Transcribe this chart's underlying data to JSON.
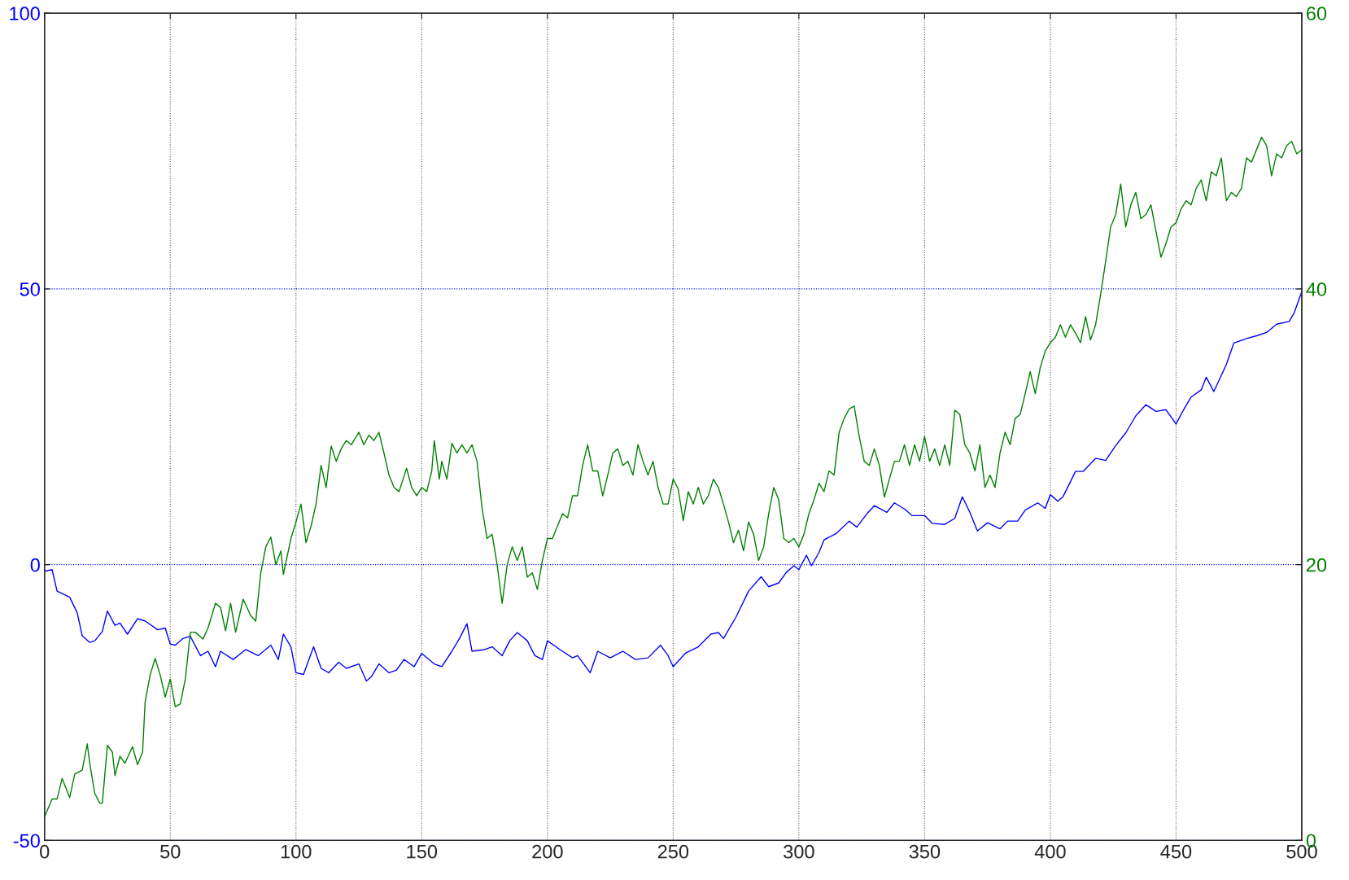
{
  "chart_data": {
    "type": "line",
    "xlim": [
      0,
      500
    ],
    "xticks": [
      0,
      50,
      100,
      150,
      200,
      250,
      300,
      350,
      400,
      450,
      500
    ],
    "ylim": [
      -50,
      100
    ],
    "yticks": [
      -50,
      0,
      50,
      100
    ],
    "y2lim": [
      0,
      60
    ],
    "y2ticks": [
      0,
      20,
      40,
      60
    ],
    "grid": true,
    "line_style": "solid",
    "marker": "none",
    "series": [
      {
        "color": "#0000ff",
        "x": [
          0,
          3,
          5,
          10,
          13,
          15,
          18,
          20,
          23,
          25,
          28,
          30,
          33,
          37,
          40,
          45,
          48,
          50,
          52,
          55,
          58,
          62,
          65,
          68,
          70,
          75,
          80,
          85,
          90,
          93,
          95,
          98,
          100,
          103,
          107,
          110,
          113,
          117,
          120,
          125,
          128,
          130,
          133,
          137,
          140,
          143,
          147,
          150,
          155,
          158,
          162,
          165,
          168,
          170,
          175,
          178,
          182,
          185,
          188,
          192,
          195,
          198,
          200,
          205,
          210,
          212,
          217,
          220,
          225,
          230,
          235,
          240,
          245,
          248,
          250,
          255,
          260,
          265,
          268,
          270,
          275,
          280,
          285,
          288,
          292,
          295,
          298,
          300,
          303,
          305,
          308,
          310,
          315,
          320,
          323,
          327,
          330,
          335,
          338,
          342,
          345,
          350,
          353,
          358,
          362,
          365,
          368,
          371,
          375,
          380,
          383,
          387,
          390,
          395,
          398,
          400,
          403,
          405,
          410,
          413,
          418,
          422,
          426,
          430,
          434,
          438,
          442,
          446,
          450,
          453,
          456,
          460,
          462,
          465,
          470,
          473,
          478,
          482,
          486,
          490,
          495,
          497,
          500
        ],
        "values": [
          -1.2,
          -0.9,
          -4.8,
          -5.9,
          -8.7,
          -12.9,
          -14.1,
          -13.8,
          -12.1,
          -8.4,
          -11.0,
          -10.6,
          -12.6,
          -9.8,
          -10.2,
          -11.8,
          -11.5,
          -14.4,
          -14.6,
          -13.4,
          -13.0,
          -16.5,
          -15.7,
          -18.5,
          -15.7,
          -17.2,
          -15.4,
          -16.5,
          -14.6,
          -17.2,
          -12.6,
          -14.9,
          -19.6,
          -19.9,
          -14.9,
          -18.8,
          -19.6,
          -17.7,
          -18.8,
          -18.0,
          -21.1,
          -20.3,
          -18.0,
          -19.6,
          -19.1,
          -17.2,
          -18.5,
          -16.1,
          -18.0,
          -18.5,
          -15.7,
          -13.4,
          -10.7,
          -15.7,
          -15.4,
          -14.9,
          -16.5,
          -13.8,
          -12.3,
          -13.8,
          -16.5,
          -17.2,
          -13.8,
          -15.4,
          -16.9,
          -16.5,
          -19.6,
          -15.7,
          -16.9,
          -15.7,
          -17.2,
          -16.9,
          -14.6,
          -16.5,
          -18.5,
          -16.0,
          -14.9,
          -12.6,
          -12.3,
          -13.4,
          -9.5,
          -4.8,
          -2.2,
          -4.0,
          -3.3,
          -1.4,
          -0.2,
          -0.9,
          1.7,
          -0.2,
          2.2,
          4.5,
          5.7,
          7.9,
          6.8,
          9.2,
          10.7,
          9.5,
          11.2,
          10.1,
          8.9,
          8.9,
          7.5,
          7.3,
          8.4,
          12.3,
          9.5,
          6.1,
          7.6,
          6.5,
          7.9,
          7.9,
          9.9,
          11.2,
          10.2,
          12.7,
          11.5,
          12.3,
          16.9,
          16.9,
          19.3,
          18.9,
          21.6,
          23.9,
          27.0,
          29.0,
          27.8,
          28.1,
          25.5,
          28.1,
          30.4,
          31.7,
          34.0,
          31.4,
          36.3,
          40.2,
          41.0,
          41.5,
          42.1,
          43.6,
          44.1,
          45.7,
          49.5
        ]
      },
      {
        "color": "#008000",
        "axis": "y2",
        "x": [
          0,
          3,
          5,
          7,
          10,
          12,
          15,
          17,
          18,
          20,
          22,
          23,
          25,
          27,
          28,
          30,
          32,
          35,
          37,
          39,
          40,
          42,
          44,
          46,
          48,
          50,
          52,
          54,
          56,
          58,
          60,
          63,
          65,
          68,
          70,
          72,
          74,
          76,
          79,
          82,
          84,
          86,
          88,
          90,
          92,
          94,
          95,
          98,
          100,
          102,
          104,
          106,
          108,
          110,
          112,
          114,
          116,
          118,
          120,
          122,
          125,
          127,
          129,
          131,
          133,
          135,
          137,
          139,
          141,
          144,
          146,
          148,
          150,
          152,
          154,
          155,
          157,
          158,
          160,
          162,
          164,
          166,
          168,
          170,
          172,
          174,
          176,
          178,
          180,
          182,
          184,
          186,
          188,
          190,
          192,
          194,
          196,
          198,
          200,
          202,
          204,
          206,
          208,
          210,
          212,
          214,
          216,
          218,
          220,
          222,
          224,
          226,
          228,
          230,
          232,
          234,
          236,
          238,
          240,
          242,
          244,
          246,
          248,
          250,
          252,
          254,
          256,
          258,
          260,
          262,
          264,
          266,
          268,
          270,
          272,
          274,
          276,
          278,
          280,
          282,
          284,
          286,
          288,
          290,
          292,
          294,
          296,
          298,
          300,
          302,
          304,
          306,
          308,
          310,
          312,
          314,
          316,
          318,
          320,
          322,
          324,
          326,
          328,
          330,
          332,
          334,
          336,
          338,
          340,
          342,
          344,
          346,
          348,
          350,
          352,
          354,
          356,
          358,
          360,
          362,
          364,
          366,
          368,
          370,
          372,
          374,
          376,
          378,
          380,
          382,
          384,
          386,
          388,
          390,
          392,
          394,
          396,
          398,
          400,
          402,
          404,
          406,
          408,
          410,
          412,
          414,
          416,
          418,
          420,
          422,
          424,
          426,
          428,
          430,
          432,
          434,
          436,
          438,
          440,
          442,
          444,
          446,
          448,
          450,
          452,
          454,
          456,
          458,
          460,
          462,
          464,
          466,
          468,
          470,
          472,
          474,
          476,
          478,
          480,
          482,
          484,
          486,
          488,
          490,
          492,
          494,
          496,
          498,
          500
        ],
        "values": [
          1.7,
          3.0,
          3.0,
          4.5,
          3.1,
          4.8,
          5.1,
          7.0,
          5.6,
          3.4,
          2.7,
          2.7,
          6.9,
          6.4,
          4.7,
          6.1,
          5.6,
          6.8,
          5.5,
          6.4,
          10.0,
          12.0,
          13.2,
          12.0,
          10.4,
          11.7,
          9.7,
          9.9,
          11.7,
          15.1,
          15.1,
          14.6,
          15.4,
          17.2,
          16.9,
          15.2,
          17.2,
          15.1,
          17.5,
          16.3,
          15.9,
          19.4,
          21.3,
          22.0,
          20.0,
          21.0,
          19.3,
          21.9,
          23.1,
          24.4,
          21.6,
          22.8,
          24.4,
          27.2,
          25.6,
          28.6,
          27.5,
          28.4,
          29.0,
          28.7,
          29.6,
          28.7,
          29.4,
          29.0,
          29.6,
          28.1,
          26.5,
          25.6,
          25.3,
          27.0,
          25.6,
          25.0,
          25.6,
          25.3,
          26.8,
          29.0,
          26.2,
          27.5,
          26.2,
          28.8,
          28.1,
          28.7,
          28.1,
          28.7,
          27.5,
          24.1,
          21.9,
          22.2,
          20.0,
          17.2,
          20.0,
          21.3,
          20.3,
          21.3,
          19.1,
          19.4,
          18.2,
          20.3,
          21.9,
          21.9,
          22.8,
          23.7,
          23.4,
          25.0,
          25.0,
          27.2,
          28.7,
          26.8,
          26.8,
          25.0,
          26.5,
          28.1,
          28.4,
          27.2,
          27.5,
          26.5,
          28.7,
          27.5,
          26.5,
          27.5,
          25.6,
          24.4,
          24.4,
          26.2,
          25.5,
          23.2,
          25.3,
          24.4,
          25.6,
          24.4,
          25.0,
          26.2,
          25.6,
          24.4,
          23.1,
          21.6,
          22.5,
          21.0,
          23.1,
          22.2,
          20.3,
          21.3,
          23.7,
          25.6,
          24.7,
          21.9,
          21.6,
          21.9,
          21.3,
          22.2,
          23.7,
          24.7,
          25.9,
          25.3,
          26.8,
          26.5,
          29.6,
          30.6,
          31.3,
          31.5,
          29.3,
          27.5,
          27.2,
          28.4,
          27.2,
          24.9,
          26.2,
          27.5,
          27.5,
          28.7,
          27.2,
          28.7,
          27.5,
          29.3,
          27.5,
          28.4,
          27.2,
          28.7,
          27.2,
          31.2,
          30.9,
          28.7,
          28.1,
          26.8,
          28.7,
          25.6,
          26.5,
          25.6,
          28.1,
          29.6,
          28.7,
          30.6,
          30.9,
          32.4,
          34.0,
          32.4,
          34.3,
          35.5,
          36.1,
          36.5,
          37.4,
          36.5,
          37.4,
          36.8,
          36.1,
          38.0,
          36.3,
          37.4,
          39.6,
          42.0,
          44.5,
          45.4,
          47.6,
          44.5,
          46.1,
          47.0,
          45.1,
          45.4,
          46.1,
          44.2,
          42.3,
          43.3,
          44.5,
          44.8,
          45.8,
          46.4,
          46.1,
          47.3,
          47.9,
          46.4,
          48.5,
          48.2,
          49.5,
          46.4,
          47.0,
          46.7,
          47.3,
          49.5,
          49.2,
          50.1,
          51.0,
          50.4,
          48.2,
          49.8,
          49.5,
          50.4,
          50.7,
          49.8,
          50.1
        ]
      }
    ]
  }
}
